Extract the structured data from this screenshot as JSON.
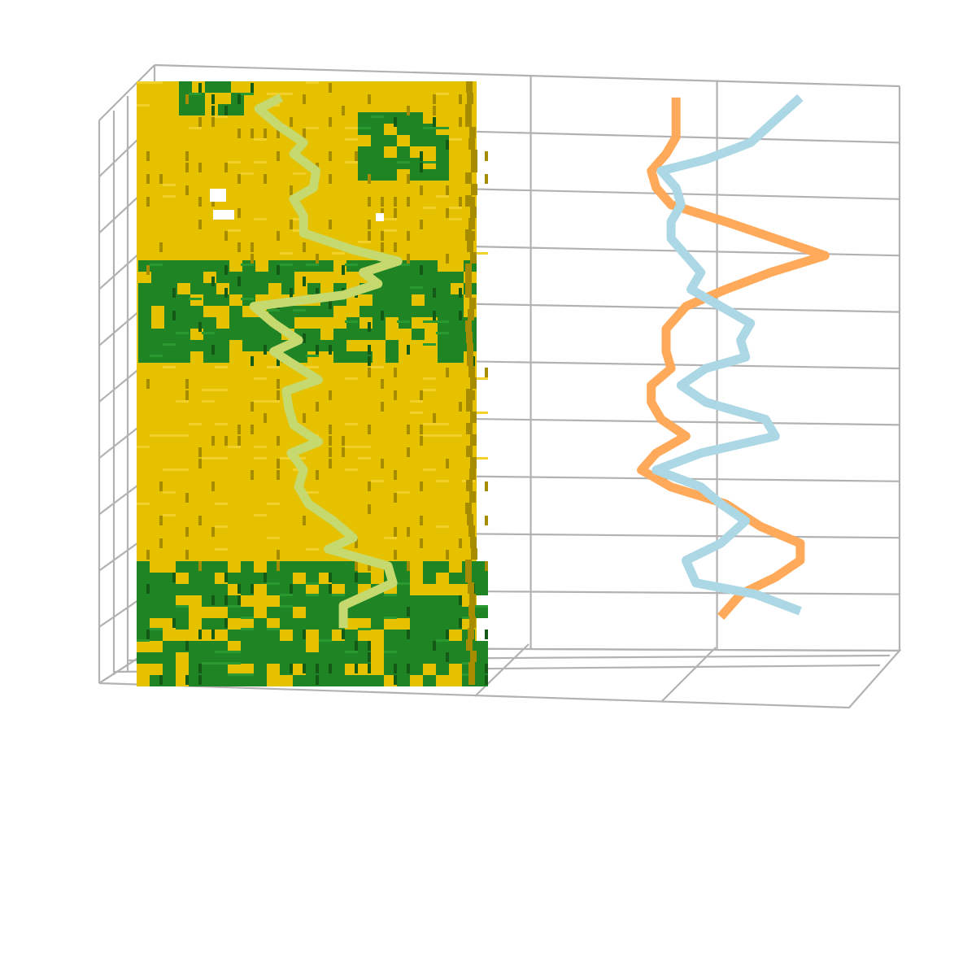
{
  "chart_data": {
    "type": "line",
    "grid": true,
    "xlim": [
      0,
      3
    ],
    "ylim": [
      0,
      10
    ],
    "colors": {
      "grid": "#b2b2b2",
      "voxel_yellow": "#e5c100",
      "voxel_yellow_dark": "#a88c00",
      "voxel_green": "#1e8424",
      "voxel_green_dark": "#135a16"
    },
    "series": [
      {
        "color": "#c5d96e",
        "values": [
          [
            0.51,
            9.8
          ],
          [
            0.42,
            9.6
          ],
          [
            0.5,
            9.3
          ],
          [
            0.6,
            9.0
          ],
          [
            0.56,
            8.8
          ],
          [
            0.65,
            8.5
          ],
          [
            0.64,
            8.2
          ],
          [
            0.56,
            8.0
          ],
          [
            0.6,
            7.7
          ],
          [
            0.6,
            7.4
          ],
          [
            0.8,
            7.1
          ],
          [
            0.98,
            6.9
          ],
          [
            0.84,
            6.7
          ],
          [
            0.9,
            6.5
          ],
          [
            0.76,
            6.3
          ],
          [
            0.4,
            6.1
          ],
          [
            0.48,
            5.8
          ],
          [
            0.58,
            5.5
          ],
          [
            0.48,
            5.3
          ],
          [
            0.55,
            5.1
          ],
          [
            0.66,
            4.8
          ],
          [
            0.53,
            4.6
          ],
          [
            0.54,
            4.3
          ],
          [
            0.56,
            4.0
          ],
          [
            0.66,
            3.7
          ],
          [
            0.55,
            3.5
          ],
          [
            0.6,
            3.2
          ],
          [
            0.58,
            2.9
          ],
          [
            0.62,
            2.6
          ],
          [
            0.72,
            2.3
          ],
          [
            0.8,
            2.0
          ],
          [
            0.7,
            1.8
          ],
          [
            0.94,
            1.5
          ],
          [
            0.96,
            1.2
          ],
          [
            0.76,
            0.8
          ],
          [
            0.76,
            0.4
          ]
        ]
      },
      {
        "color": "#ffaa5a",
        "values": [
          [
            2.1,
            9.8
          ],
          [
            2.1,
            9.5
          ],
          [
            2.1,
            9.1
          ],
          [
            2.06,
            8.8
          ],
          [
            2.0,
            8.5
          ],
          [
            2.02,
            8.2
          ],
          [
            2.08,
            7.9
          ],
          [
            2.3,
            7.6
          ],
          [
            2.5,
            7.3
          ],
          [
            2.7,
            7.0
          ],
          [
            2.48,
            6.7
          ],
          [
            2.3,
            6.4
          ],
          [
            2.14,
            6.1
          ],
          [
            2.06,
            5.7
          ],
          [
            2.06,
            5.3
          ],
          [
            2.08,
            5.0
          ],
          [
            2.0,
            4.7
          ],
          [
            2.0,
            4.4
          ],
          [
            2.04,
            4.1
          ],
          [
            2.14,
            3.8
          ],
          [
            2.02,
            3.5
          ],
          [
            1.96,
            3.2
          ],
          [
            2.08,
            2.9
          ],
          [
            2.3,
            2.6
          ],
          [
            2.44,
            2.2
          ],
          [
            2.6,
            1.9
          ],
          [
            2.6,
            1.6
          ],
          [
            2.5,
            1.3
          ],
          [
            2.36,
            1.0
          ],
          [
            2.28,
            0.6
          ]
        ]
      },
      {
        "color": "#acd8e6",
        "values": [
          [
            2.6,
            9.8
          ],
          [
            2.5,
            9.4
          ],
          [
            2.4,
            9.0
          ],
          [
            2.22,
            8.7
          ],
          [
            2.04,
            8.5
          ],
          [
            2.1,
            8.2
          ],
          [
            2.12,
            7.9
          ],
          [
            2.08,
            7.6
          ],
          [
            2.08,
            7.3
          ],
          [
            2.14,
            7.0
          ],
          [
            2.2,
            6.7
          ],
          [
            2.16,
            6.4
          ],
          [
            2.28,
            6.1
          ],
          [
            2.4,
            5.8
          ],
          [
            2.36,
            5.5
          ],
          [
            2.38,
            5.2
          ],
          [
            2.22,
            5.0
          ],
          [
            2.12,
            4.7
          ],
          [
            2.22,
            4.4
          ],
          [
            2.46,
            4.1
          ],
          [
            2.5,
            3.8
          ],
          [
            2.2,
            3.5
          ],
          [
            2.02,
            3.2
          ],
          [
            2.2,
            2.9
          ],
          [
            2.28,
            2.6
          ],
          [
            2.38,
            2.3
          ],
          [
            2.28,
            1.9
          ],
          [
            2.14,
            1.6
          ],
          [
            2.18,
            1.2
          ],
          [
            2.42,
            1.0
          ],
          [
            2.6,
            0.7
          ]
        ]
      }
    ]
  }
}
